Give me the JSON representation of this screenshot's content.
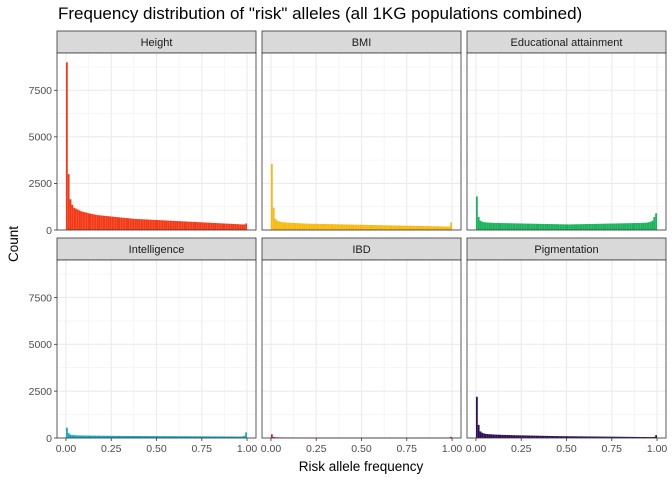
{
  "chart_data": {
    "type": "bar",
    "title": "Frequency distribution of \"risk\" alleles (all 1KG populations combined)",
    "xlabel": "Risk allele frequency",
    "ylabel": "Count",
    "xlim": [
      0,
      1
    ],
    "ylim": [
      0,
      9500
    ],
    "x_ticks": [
      "0.00",
      "0.25",
      "0.50",
      "0.75",
      "1.00"
    ],
    "y_ticks": [
      "0",
      "2500",
      "5000",
      "7500"
    ],
    "grid": true,
    "bins": 100,
    "panels": [
      {
        "name": "Height",
        "color": "#F33A17",
        "values": [
          9000,
          3000,
          1650,
          1350,
          1200,
          1150,
          1100,
          1050,
          1000,
          980,
          950,
          930,
          900,
          880,
          860,
          840,
          820,
          800,
          790,
          780,
          770,
          760,
          750,
          740,
          730,
          720,
          710,
          700,
          690,
          680,
          670,
          660,
          650,
          640,
          630,
          620,
          610,
          600,
          595,
          590,
          585,
          580,
          575,
          570,
          565,
          560,
          555,
          550,
          545,
          540,
          535,
          530,
          525,
          520,
          515,
          510,
          505,
          500,
          495,
          490,
          485,
          480,
          475,
          470,
          465,
          460,
          455,
          450,
          445,
          440,
          435,
          430,
          425,
          420,
          415,
          410,
          405,
          400,
          395,
          390,
          385,
          380,
          375,
          370,
          365,
          360,
          355,
          350,
          345,
          340,
          335,
          330,
          325,
          320,
          315,
          310,
          305,
          300,
          300,
          350
        ]
      },
      {
        "name": "BMI",
        "color": "#F8B912",
        "values": [
          3550,
          1200,
          600,
          500,
          460,
          440,
          420,
          410,
          400,
          395,
          390,
          385,
          380,
          375,
          370,
          365,
          360,
          355,
          350,
          345,
          340,
          338,
          336,
          334,
          332,
          330,
          328,
          326,
          324,
          322,
          320,
          318,
          316,
          314,
          312,
          310,
          308,
          306,
          304,
          302,
          300,
          298,
          296,
          294,
          292,
          290,
          288,
          286,
          284,
          282,
          280,
          278,
          276,
          274,
          272,
          270,
          268,
          266,
          264,
          262,
          260,
          258,
          256,
          254,
          252,
          250,
          248,
          246,
          244,
          242,
          240,
          238,
          236,
          234,
          232,
          230,
          228,
          226,
          224,
          222,
          220,
          218,
          216,
          214,
          212,
          210,
          208,
          206,
          204,
          202,
          200,
          198,
          196,
          194,
          192,
          190,
          188,
          186,
          184,
          400
        ]
      },
      {
        "name": "Educational attainment",
        "color": "#19B35B",
        "values": [
          1800,
          700,
          500,
          450,
          420,
          410,
          400,
          395,
          390,
          385,
          380,
          378,
          376,
          374,
          372,
          370,
          368,
          366,
          364,
          362,
          360,
          358,
          356,
          354,
          352,
          350,
          348,
          346,
          344,
          342,
          340,
          338,
          336,
          334,
          332,
          330,
          328,
          326,
          324,
          322,
          320,
          318,
          316,
          314,
          312,
          310,
          308,
          306,
          304,
          302,
          300,
          300,
          302,
          304,
          306,
          308,
          310,
          312,
          314,
          316,
          318,
          320,
          322,
          324,
          326,
          328,
          330,
          332,
          334,
          336,
          338,
          340,
          342,
          344,
          346,
          348,
          350,
          352,
          354,
          356,
          358,
          360,
          362,
          364,
          366,
          368,
          370,
          372,
          374,
          376,
          378,
          380,
          385,
          390,
          400,
          420,
          450,
          500,
          700,
          900
        ]
      },
      {
        "name": "Intelligence",
        "color": "#12A8BD",
        "values": [
          550,
          260,
          180,
          160,
          150,
          145,
          140,
          138,
          136,
          134,
          132,
          130,
          129,
          128,
          127,
          126,
          125,
          124,
          123,
          122,
          121,
          120,
          119,
          118,
          117,
          116,
          115,
          114,
          113,
          112,
          111,
          110,
          110,
          109,
          109,
          108,
          108,
          107,
          107,
          106,
          106,
          105,
          105,
          104,
          104,
          103,
          103,
          102,
          102,
          101,
          101,
          100,
          100,
          100,
          99,
          99,
          98,
          98,
          97,
          97,
          96,
          96,
          95,
          95,
          94,
          94,
          93,
          93,
          92,
          92,
          91,
          91,
          90,
          90,
          89,
          89,
          88,
          88,
          87,
          87,
          86,
          86,
          85,
          85,
          84,
          84,
          83,
          83,
          82,
          82,
          81,
          81,
          80,
          80,
          79,
          79,
          78,
          78,
          120,
          300
        ]
      },
      {
        "name": "IBD",
        "color": "#C81E64",
        "values": [
          200,
          60,
          40,
          35,
          32,
          30,
          30,
          29,
          29,
          28,
          28,
          27,
          27,
          26,
          26,
          25,
          25,
          25,
          24,
          24,
          24,
          23,
          23,
          23,
          22,
          22,
          22,
          21,
          21,
          21,
          20,
          20,
          20,
          20,
          20,
          20,
          20,
          20,
          20,
          20,
          20,
          20,
          20,
          20,
          20,
          20,
          20,
          20,
          20,
          20,
          20,
          20,
          20,
          20,
          20,
          20,
          20,
          20,
          20,
          20,
          20,
          20,
          20,
          20,
          20,
          20,
          20,
          20,
          20,
          20,
          20,
          20,
          20,
          20,
          20,
          20,
          20,
          20,
          20,
          20,
          20,
          20,
          20,
          20,
          20,
          20,
          20,
          20,
          20,
          20,
          20,
          20,
          20,
          20,
          20,
          20,
          20,
          20,
          30,
          60
        ]
      },
      {
        "name": "Pigmentation",
        "color": "#2E0D56",
        "values": [
          2200,
          700,
          350,
          280,
          240,
          220,
          210,
          200,
          195,
          190,
          185,
          180,
          176,
          172,
          168,
          165,
          162,
          159,
          156,
          153,
          150,
          148,
          146,
          144,
          142,
          140,
          138,
          136,
          134,
          132,
          130,
          128,
          126,
          124,
          122,
          120,
          118,
          116,
          114,
          112,
          110,
          108,
          106,
          104,
          102,
          100,
          99,
          98,
          97,
          96,
          95,
          94,
          93,
          92,
          91,
          90,
          89,
          88,
          87,
          86,
          85,
          84,
          83,
          82,
          81,
          80,
          79,
          78,
          77,
          76,
          75,
          74,
          73,
          72,
          71,
          70,
          69,
          68,
          67,
          66,
          65,
          64,
          63,
          62,
          61,
          60,
          59,
          58,
          57,
          56,
          55,
          54,
          53,
          52,
          51,
          50,
          50,
          50,
          60,
          150
        ]
      }
    ]
  }
}
